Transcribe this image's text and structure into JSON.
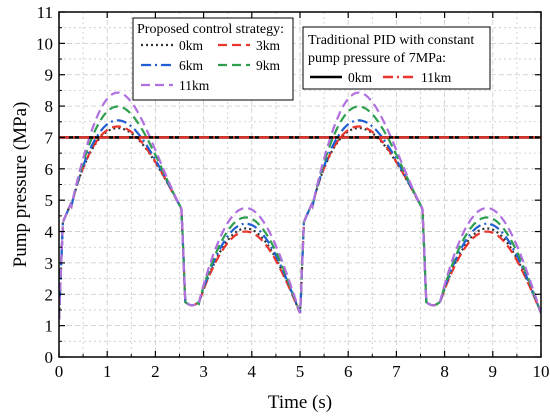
{
  "chart_data": {
    "type": "line",
    "xlabel": "Time (s)",
    "ylabel": "Pump pressure (MPa)",
    "xlim": [
      0,
      10
    ],
    "ylim": [
      0,
      11
    ],
    "xticks": [
      "0",
      "1",
      "2",
      "3",
      "4",
      "5",
      "6",
      "7",
      "8",
      "9",
      "10"
    ],
    "yticks": [
      "0",
      "1",
      "2",
      "3",
      "4",
      "5",
      "6",
      "7",
      "8",
      "9",
      "10",
      "11"
    ],
    "grid": true,
    "legends": [
      {
        "title": "Proposed control strategy:",
        "placement": "top-left",
        "entries": [
          "0km",
          "3km",
          "6km",
          "9km",
          "11km"
        ]
      },
      {
        "title_lines": [
          "Traditional PID with constant",
          "pump pressure of 7MPa:"
        ],
        "placement": "top-right",
        "entries": [
          "0km",
          "11km"
        ]
      }
    ],
    "series": [
      {
        "name": "0km",
        "group": "proposed",
        "color": "#333333",
        "dash": "dot",
        "peak": 7.3,
        "trough_mid": 4.15
      },
      {
        "name": "3km",
        "group": "proposed",
        "color": "#e8342b",
        "dash": "dash",
        "peak": 7.35,
        "trough_mid": 4.05
      },
      {
        "name": "6km",
        "group": "proposed",
        "color": "#1f5fd1",
        "dash": "dashdot",
        "peak": 7.55,
        "trough_mid": 4.3
      },
      {
        "name": "9km",
        "group": "proposed",
        "color": "#2e9e4f",
        "dash": "dash",
        "peak": 8.0,
        "trough_mid": 4.5
      },
      {
        "name": "11km",
        "group": "proposed",
        "color": "#b070e0",
        "dash": "dash",
        "peak": 8.45,
        "trough_mid": 4.8
      },
      {
        "name": "0km",
        "group": "pid",
        "color": "#000000",
        "dash": "solid",
        "x": [
          0,
          10
        ],
        "y": [
          7,
          7
        ]
      },
      {
        "name": "11km",
        "group": "pid",
        "color": "#e8342b",
        "dash": "dashdot",
        "x": [
          0,
          10
        ],
        "y": [
          7,
          7
        ]
      }
    ],
    "colors": {
      "grid": "#c8c8c8",
      "axis": "#000000"
    }
  }
}
